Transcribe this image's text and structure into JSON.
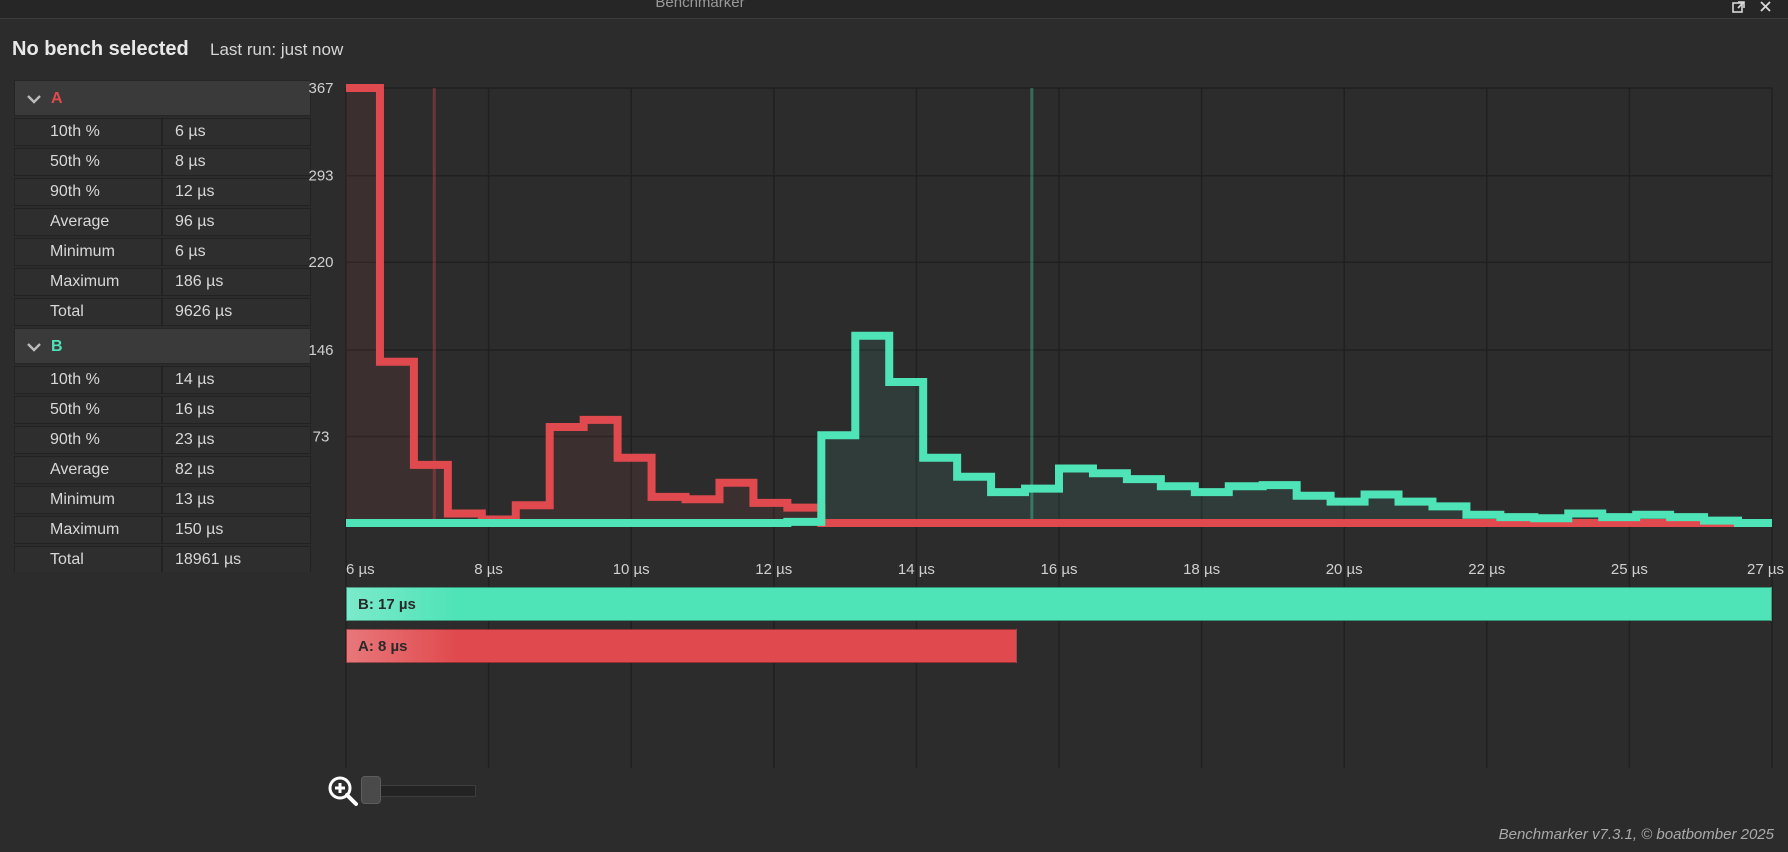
{
  "window": {
    "title": "Benchmarker"
  },
  "header": {
    "bench_status": "No bench selected",
    "last_run": "Last run: just now"
  },
  "groups": [
    {
      "name": "A",
      "color": "#e04a4e",
      "stats": [
        {
          "label": "10th %",
          "value": "6 µs"
        },
        {
          "label": "50th %",
          "value": "8 µs"
        },
        {
          "label": "90th %",
          "value": "12 µs"
        },
        {
          "label": "Average",
          "value": "96 µs"
        },
        {
          "label": "Minimum",
          "value": "6 µs"
        },
        {
          "label": "Maximum",
          "value": "186 µs"
        },
        {
          "label": "Total",
          "value": "9626 µs"
        }
      ]
    },
    {
      "name": "B",
      "color": "#4fe3b8",
      "stats": [
        {
          "label": "10th %",
          "value": "14 µs"
        },
        {
          "label": "50th %",
          "value": "16 µs"
        },
        {
          "label": "90th %",
          "value": "23 µs"
        },
        {
          "label": "Average",
          "value": "82 µs"
        },
        {
          "label": "Minimum",
          "value": "13 µs"
        },
        {
          "label": "Maximum",
          "value": "150 µs"
        },
        {
          "label": "Total",
          "value": "18961 µs"
        }
      ]
    }
  ],
  "chart_data": {
    "type": "area",
    "title": "",
    "xlabel": "",
    "ylabel": "",
    "grid": true,
    "x_ticks": [
      "6 µs",
      "8 µs",
      "10 µs",
      "12 µs",
      "14 µs",
      "16 µs",
      "18 µs",
      "20 µs",
      "22 µs",
      "25 µs",
      "27 µs"
    ],
    "y_ticks": [
      73,
      146,
      220,
      293,
      367
    ],
    "ylim": [
      0,
      367
    ],
    "markers": [
      {
        "series": "A",
        "x_value": 7.3
      },
      {
        "series": "B",
        "x_value": 16.1
      }
    ],
    "series": [
      {
        "name": "A",
        "color": "#e04a4e",
        "x": [
          6,
          6.5,
          7.0,
          7.5,
          8.0,
          8.5,
          9.0,
          9.5,
          10.0,
          10.5,
          11.0,
          11.5,
          12.0,
          12.5,
          13.0,
          27.0
        ],
        "values": [
          367,
          136,
          49,
          8,
          3,
          15,
          81,
          87,
          55,
          22,
          20,
          34,
          17,
          13,
          0,
          0
        ]
      },
      {
        "name": "B",
        "color": "#4fe3b8",
        "x": [
          6,
          12.5,
          13.0,
          13.5,
          14.0,
          14.5,
          15.0,
          15.5,
          16.0,
          16.5,
          17.0,
          17.5,
          18.0,
          18.5,
          19.0,
          19.5,
          20.0,
          20.5,
          21.0,
          21.5,
          22.0,
          22.5,
          23.0,
          23.5,
          24.0,
          24.5,
          25.0,
          25.5,
          26.0,
          26.5,
          27.0
        ],
        "values": [
          0,
          1,
          74,
          158,
          119,
          55,
          39,
          26,
          29,
          46,
          42,
          37,
          31,
          26,
          31,
          32,
          23,
          18,
          24,
          18,
          14,
          7,
          5,
          4,
          8,
          5,
          7,
          5,
          2,
          0,
          0
        ]
      }
    ],
    "summary_bars": [
      {
        "label": "B: 17 µs",
        "value": 17,
        "color": "#4fe3b8"
      },
      {
        "label": "A: 8 µs",
        "value": 8,
        "color": "#e04a4e"
      }
    ]
  },
  "zoom": {
    "level": 0
  },
  "footer": {
    "text": "Benchmarker v7.3.1, © boatbomber 2025"
  }
}
